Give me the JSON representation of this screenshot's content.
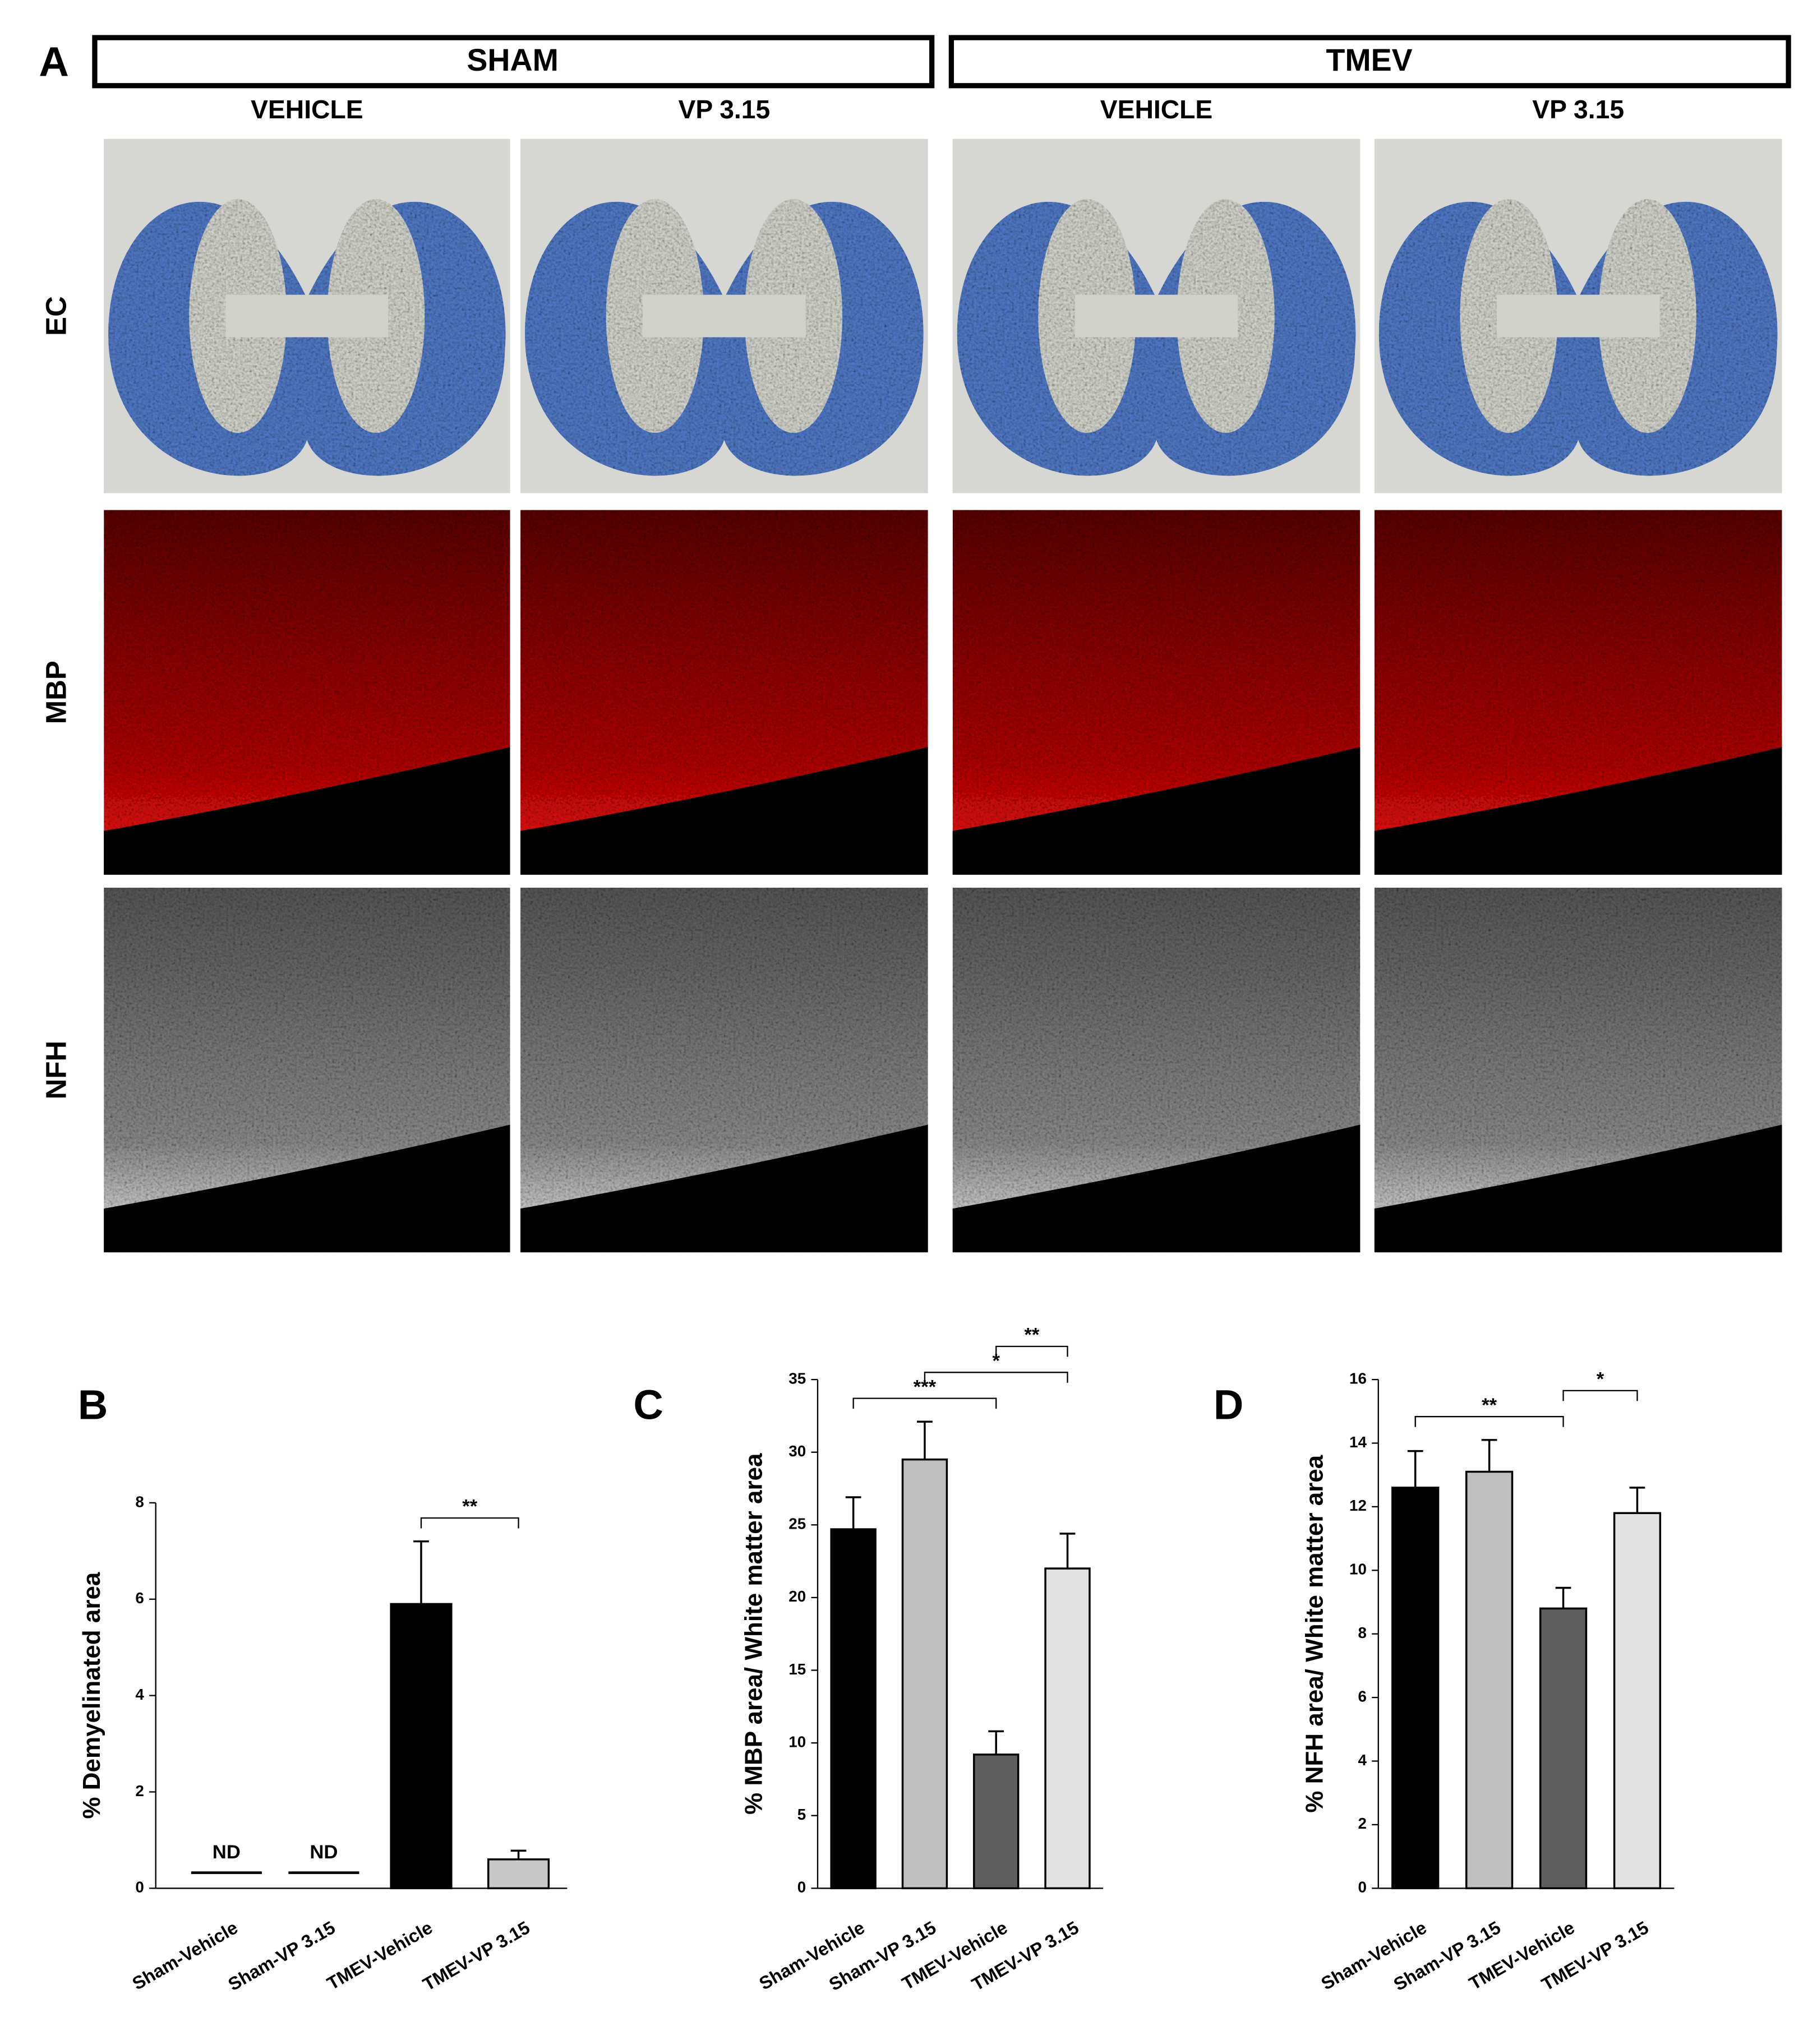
{
  "panel_a": {
    "label": "A",
    "groups": [
      "SHAM",
      "TMEV"
    ],
    "columns": [
      "VEHICLE",
      "VP 3.15",
      "VEHICLE",
      "VP 3.15"
    ],
    "rows": [
      "EC",
      "MBP",
      "NFH"
    ]
  },
  "chart_data": [
    {
      "type": "bar",
      "panel": "B",
      "ylabel": "% Demyelinated area",
      "categories": [
        "Sham-Vehicle",
        "Sham-VP 3.15",
        "TMEV-Vehicle",
        "TMEV-VP 3.15"
      ],
      "values": [
        null,
        null,
        5.9,
        0.6
      ],
      "errors": [
        null,
        null,
        1.3,
        0.18
      ],
      "value_labels": [
        "ND",
        "ND",
        null,
        null
      ],
      "colors": [
        "#000000",
        "#c4c4c4",
        "#000000",
        "#c8c8c8"
      ],
      "ylim": [
        0,
        8
      ],
      "yticks": [
        0,
        2,
        4,
        6,
        8
      ],
      "significance": [
        {
          "label": "**",
          "from": 2,
          "to": 3
        }
      ]
    },
    {
      "type": "bar",
      "panel": "C",
      "ylabel": "% MBP area/ White matter area",
      "categories": [
        "Sham-Vehicle",
        "Sham-VP 3.15",
        "TMEV-Vehicle",
        "TMEV-VP 3.15"
      ],
      "values": [
        24.7,
        29.5,
        9.2,
        22.0
      ],
      "errors": [
        2.2,
        2.6,
        1.6,
        2.4
      ],
      "colors": [
        "#000000",
        "#bfbfbf",
        "#5e5e5e",
        "#e2e2e2"
      ],
      "ylim": [
        0,
        35
      ],
      "yticks": [
        0,
        5,
        10,
        15,
        20,
        25,
        30,
        35
      ],
      "significance": [
        {
          "label": "***",
          "from": 0,
          "to": 2
        },
        {
          "label": "*",
          "from": 1,
          "to": 3
        },
        {
          "label": "**",
          "from": 2,
          "to": 3
        }
      ]
    },
    {
      "type": "bar",
      "panel": "D",
      "ylabel": "% NFH area/ White matter area",
      "categories": [
        "Sham-Vehicle",
        "Sham-VP 3.15",
        "TMEV-Vehicle",
        "TMEV-VP 3.15"
      ],
      "values": [
        12.6,
        13.1,
        8.8,
        11.8
      ],
      "errors": [
        1.15,
        1.0,
        0.65,
        0.8
      ],
      "colors": [
        "#000000",
        "#bfbfbf",
        "#5e5e5e",
        "#e2e2e2"
      ],
      "ylim": [
        0,
        16
      ],
      "yticks": [
        0,
        2,
        4,
        6,
        8,
        10,
        12,
        14,
        16
      ],
      "significance": [
        {
          "label": "**",
          "from": 0,
          "to": 2
        },
        {
          "label": "*",
          "from": 2,
          "to": 3
        }
      ]
    }
  ]
}
